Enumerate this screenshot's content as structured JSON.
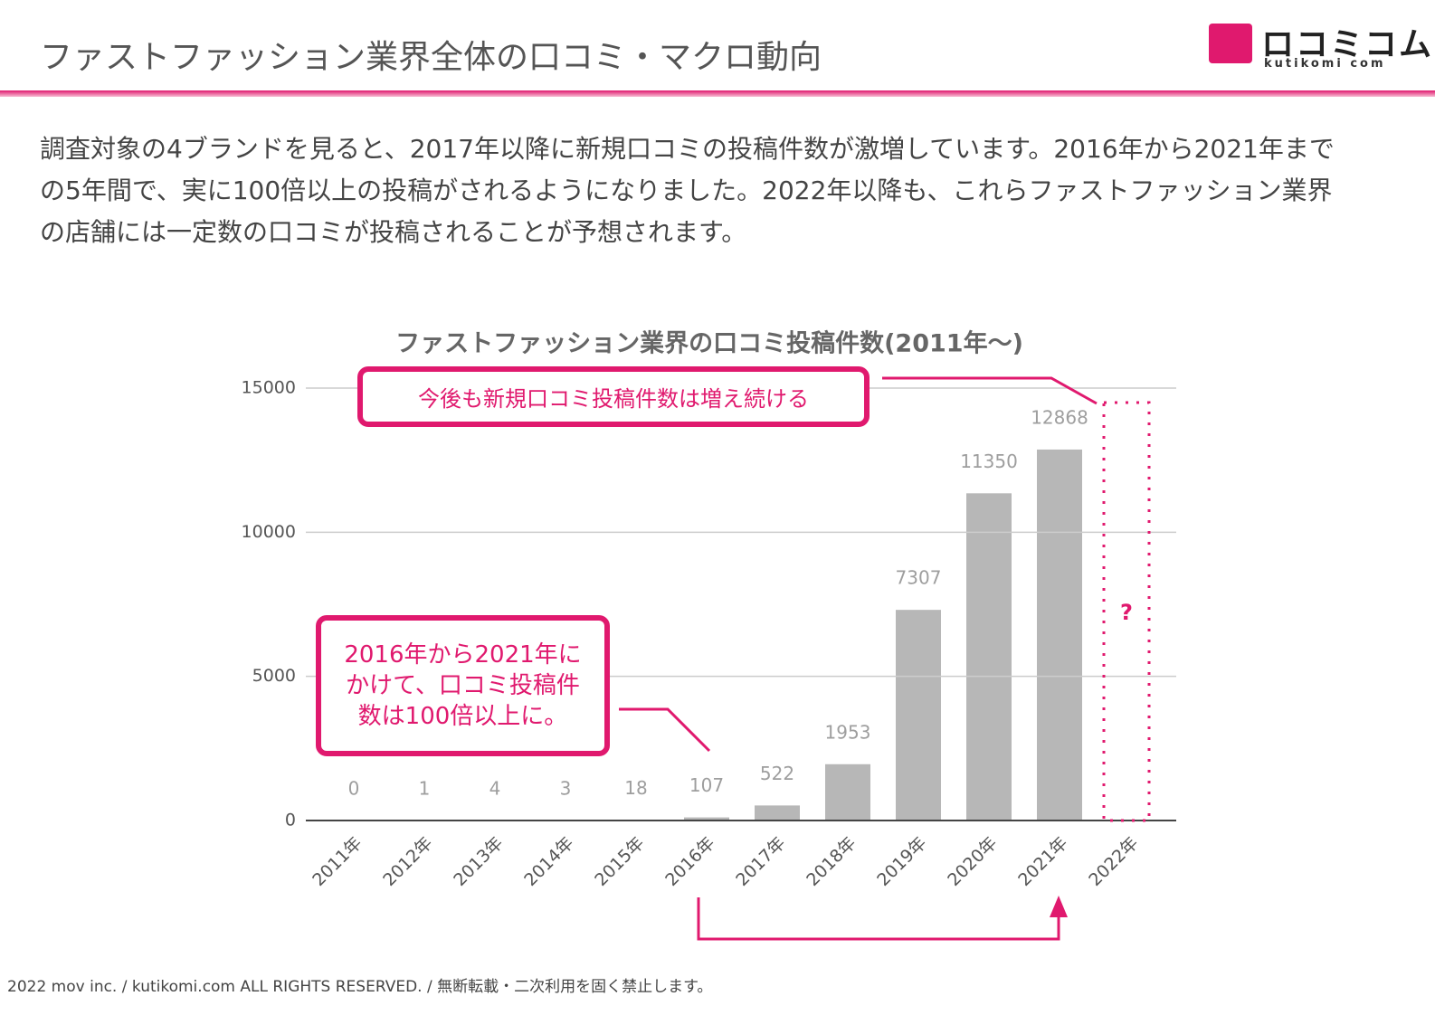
{
  "header": {
    "title": "ファストファッション業界全体の口コミ・マクロ動向",
    "logo": "ロコミコム",
    "logo_sub": "kutikomi com"
  },
  "body": "調査対象の4ブランドを見ると、2017年以降に新規口コミの投稿件数が激増しています。2016年から2021年までの5年間で、実に100倍以上の投稿がされるようになりました。2022年以降も、これらファストファッション業界の店舗には一定数の口コミが投稿されることが予想されます。",
  "chart_data": {
    "type": "bar",
    "title": "ファストファッション業界の口コミ投稿件数(2011年〜)",
    "categories": [
      "2011年",
      "2012年",
      "2013年",
      "2014年",
      "2015年",
      "2016年",
      "2017年",
      "2018年",
      "2019年",
      "2020年",
      "2021年",
      "2022年"
    ],
    "values": [
      0,
      1,
      4,
      3,
      18,
      107,
      522,
      1953,
      7307,
      11350,
      12868,
      null
    ],
    "color": "#b7b7b7",
    "ylim": [
      0,
      15000
    ],
    "yticks": [
      0,
      5000,
      10000,
      15000
    ],
    "grid": true,
    "annotations": [
      "今後も新規口コミ投稿件数は増え続ける",
      "2016年から2021年にかけて、口コミ投稿件数は100倍以上に。",
      "?"
    ]
  },
  "footer": "2022 mov inc. / kutikomi.com ALL RIGHTS RESERVED. / 無断転載・二次利用を固く禁止します。"
}
